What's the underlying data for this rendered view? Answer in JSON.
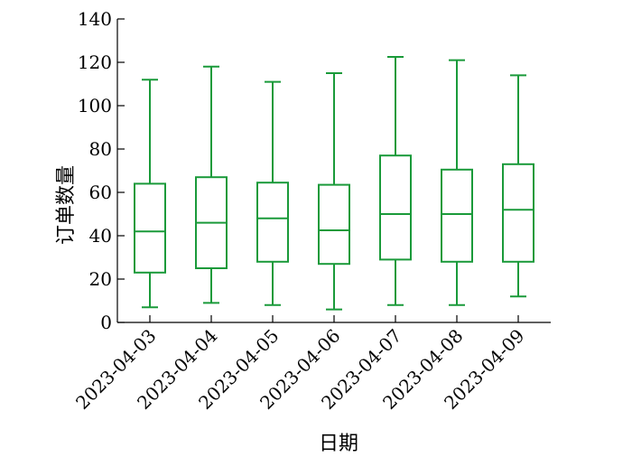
{
  "chart_data": {
    "type": "box",
    "title": "",
    "xlabel": "日期",
    "ylabel": "订单数量",
    "ylim": [
      0,
      140
    ],
    "yticks": [
      0,
      20,
      40,
      60,
      80,
      100,
      120,
      140
    ],
    "grid": false,
    "legend": "none",
    "color": "#1a9a3a",
    "categories": [
      "2023-04-03",
      "2023-04-04",
      "2023-04-05",
      "2023-04-06",
      "2023-04-07",
      "2023-04-08",
      "2023-04-09"
    ],
    "boxes": [
      {
        "min": 7,
        "q1": 23,
        "median": 42,
        "q3": 64,
        "max": 112
      },
      {
        "min": 9,
        "q1": 25,
        "median": 46,
        "q3": 67,
        "max": 118
      },
      {
        "min": 8,
        "q1": 28,
        "median": 48,
        "q3": 64.5,
        "max": 111
      },
      {
        "min": 6,
        "q1": 27,
        "median": 42.5,
        "q3": 63.5,
        "max": 115
      },
      {
        "min": 8,
        "q1": 29,
        "median": 50,
        "q3": 77,
        "max": 122.5
      },
      {
        "min": 8,
        "q1": 28,
        "median": 50,
        "q3": 70.5,
        "max": 121
      },
      {
        "min": 12,
        "q1": 28,
        "median": 52,
        "q3": 73,
        "max": 114
      }
    ]
  }
}
